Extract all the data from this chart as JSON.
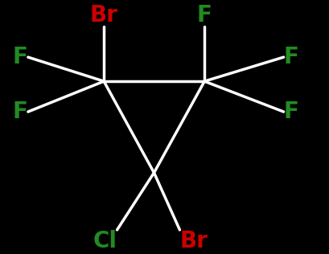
{
  "bg_color": "#000000",
  "bond_color": "#ffffff",
  "bond_lw": 2.5,
  "fig_w": 4.1,
  "fig_h": 3.16,
  "dpi": 100,
  "carbons": {
    "C1": [
      0.315,
      0.68
    ],
    "C2": [
      0.62,
      0.68
    ],
    "C3": [
      0.467,
      0.32
    ]
  },
  "carbon_bonds": [
    [
      "C1",
      "C2"
    ],
    [
      "C1",
      "C3"
    ],
    [
      "C2",
      "C3"
    ]
  ],
  "substituents": [
    {
      "from": "C1",
      "to": [
        0.315,
        0.895
      ],
      "label": "Br",
      "color": "#cc0000",
      "ha": "center",
      "va": "bottom",
      "fs": 20
    },
    {
      "from": "C1",
      "to": [
        0.085,
        0.775
      ],
      "label": "F",
      "color": "#228b22",
      "ha": "right",
      "va": "center",
      "fs": 20
    },
    {
      "from": "C1",
      "to": [
        0.085,
        0.56
      ],
      "label": "F",
      "color": "#228b22",
      "ha": "right",
      "va": "center",
      "fs": 20
    },
    {
      "from": "C2",
      "to": [
        0.62,
        0.895
      ],
      "label": "F",
      "color": "#228b22",
      "ha": "center",
      "va": "bottom",
      "fs": 20
    },
    {
      "from": "C2",
      "to": [
        0.86,
        0.775
      ],
      "label": "F",
      "color": "#228b22",
      "ha": "left",
      "va": "center",
      "fs": 20
    },
    {
      "from": "C2",
      "to": [
        0.86,
        0.56
      ],
      "label": "F",
      "color": "#228b22",
      "ha": "left",
      "va": "center",
      "fs": 20
    },
    {
      "from": "C3",
      "to": [
        0.355,
        0.095
      ],
      "label": "Cl",
      "color": "#228b22",
      "ha": "right",
      "va": "top",
      "fs": 20
    },
    {
      "from": "C3",
      "to": [
        0.545,
        0.095
      ],
      "label": "Br",
      "color": "#cc0000",
      "ha": "left",
      "va": "top",
      "fs": 20
    }
  ]
}
